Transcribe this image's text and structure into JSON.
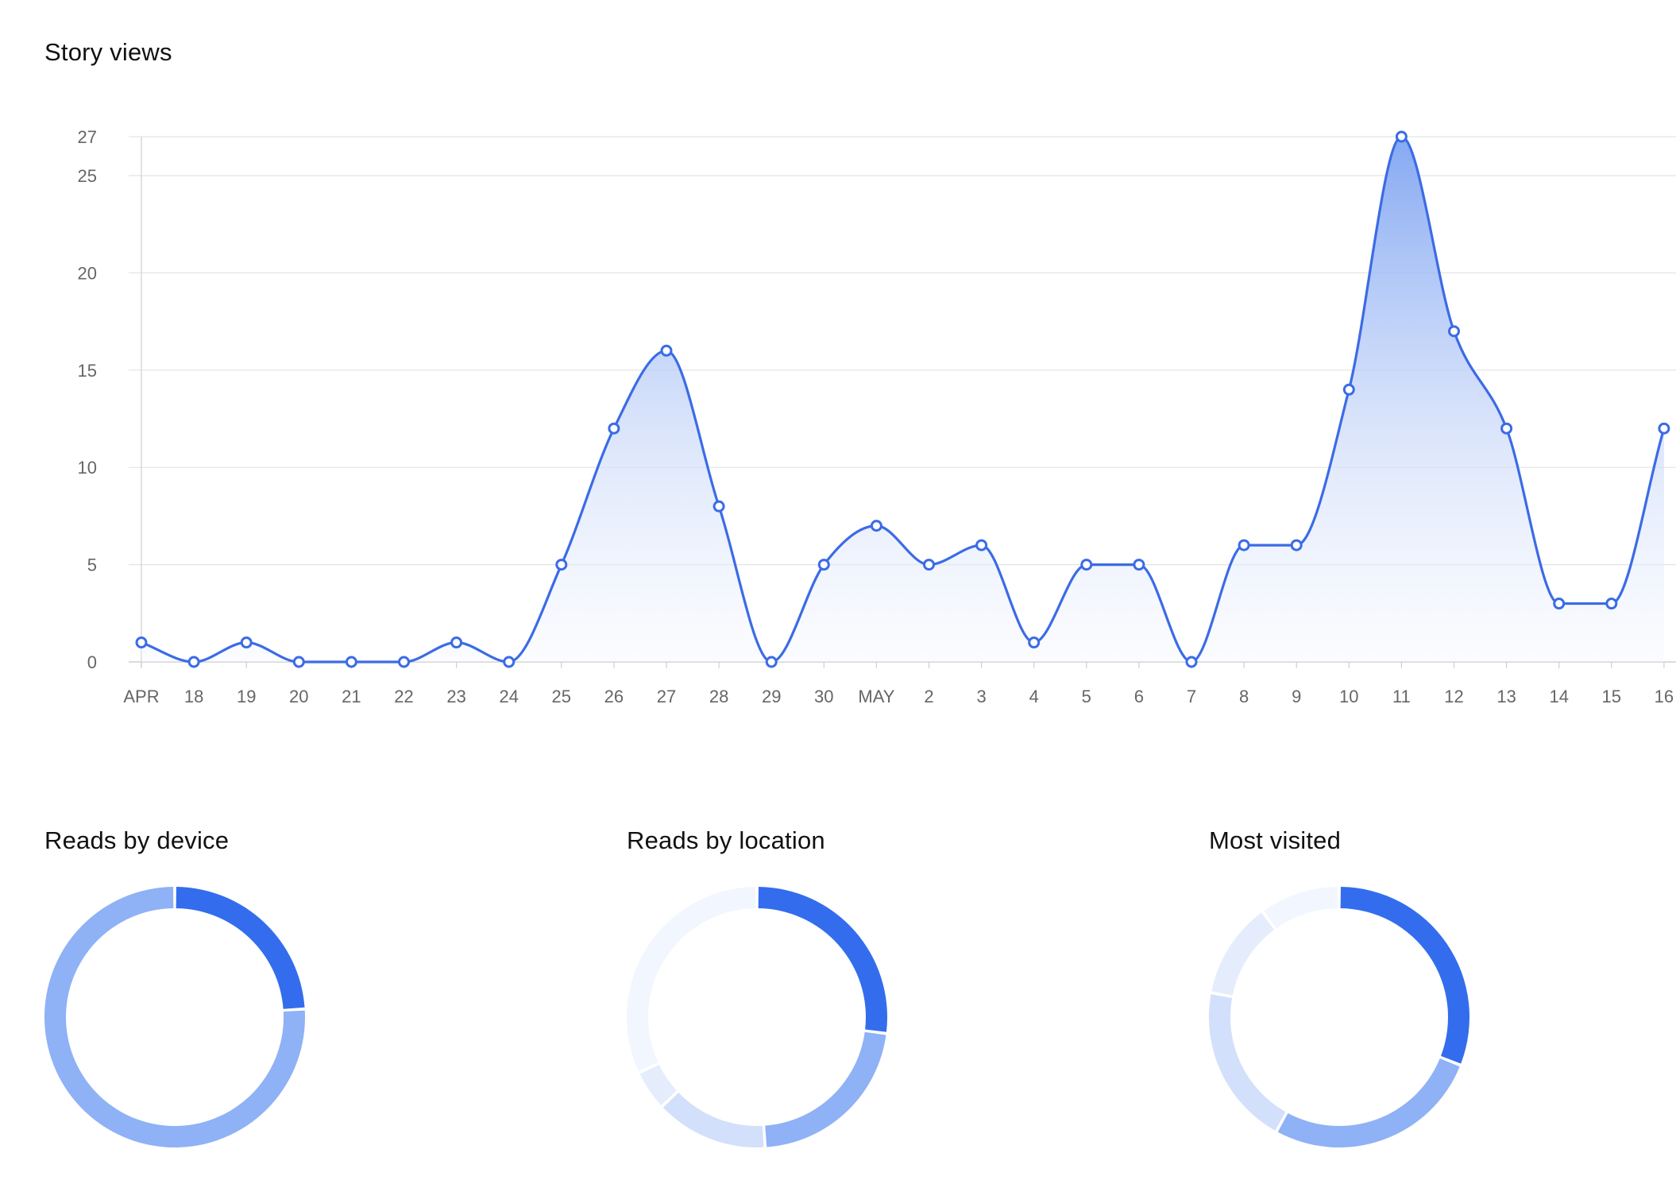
{
  "story_views": {
    "title": "Story views"
  },
  "reads_by_device": {
    "title": "Reads by device"
  },
  "reads_by_location": {
    "title": "Reads by location"
  },
  "most_visited": {
    "title": "Most visited"
  },
  "colors": {
    "line": "#3b6be6",
    "fill_top": "#7fa4f2",
    "grid": "#e4e4e4",
    "axis_text": "#666666",
    "donut": [
      "#336dee",
      "#8fb1f6",
      "#d3e0fb",
      "#e5edfd",
      "#f2f6fe"
    ]
  },
  "chart_data": [
    {
      "type": "area",
      "title": "Story views",
      "categories": [
        "APR",
        "18",
        "19",
        "20",
        "21",
        "22",
        "23",
        "24",
        "25",
        "26",
        "27",
        "28",
        "29",
        "30",
        "MAY",
        "2",
        "3",
        "4",
        "5",
        "6",
        "7",
        "8",
        "9",
        "10",
        "11",
        "12",
        "13",
        "14",
        "15",
        "16"
      ],
      "values": [
        1,
        0,
        1,
        0,
        0,
        0,
        1,
        0,
        5,
        12,
        16,
        8,
        0,
        5,
        7,
        5,
        6,
        1,
        5,
        5,
        0,
        6,
        6,
        14,
        27,
        17,
        12,
        3,
        3,
        12
      ],
      "yticks": [
        0,
        5,
        10,
        15,
        20,
        25,
        27
      ],
      "ylim": [
        0,
        27
      ],
      "grid": true,
      "smooth": true,
      "markers": true
    },
    {
      "type": "pie",
      "title": "Reads by device",
      "values": [
        24,
        76
      ],
      "donut": true
    },
    {
      "type": "pie",
      "title": "Reads by location",
      "values": [
        27,
        22,
        14,
        5,
        32
      ],
      "donut": true
    },
    {
      "type": "pie",
      "title": "Most visited",
      "values": [
        31,
        27,
        20,
        12,
        10
      ],
      "donut": true
    }
  ]
}
